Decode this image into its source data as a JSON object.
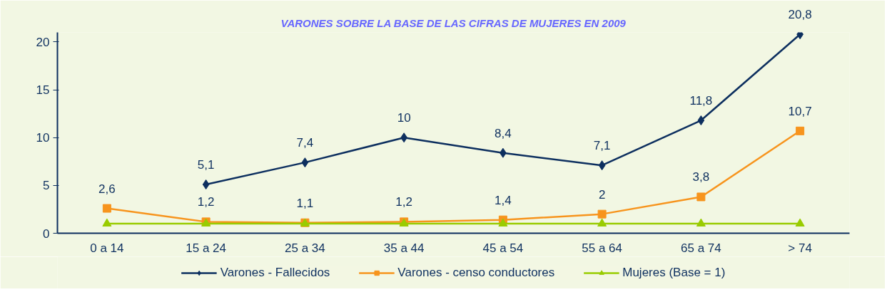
{
  "chart_data": {
    "type": "line",
    "title": "VARONES SOBRE LA BASE DE LAS CIFRAS DE MUJERES EN 2009",
    "categories": [
      "0 a 14",
      "15 a 24",
      "25 a 34",
      "35 a 44",
      "45 a 54",
      "55 a 64",
      "65 a 74",
      "> 74"
    ],
    "series": [
      {
        "name": "Varones - Fallecidos",
        "color": "#0d2f5f",
        "marker": "diamond",
        "values": [
          null,
          5.1,
          7.4,
          10,
          8.4,
          7.1,
          11.8,
          20.8
        ],
        "value_labels": [
          null,
          "5,1",
          "7,4",
          "10",
          "8,4",
          "7,1",
          "11,8",
          "20,8"
        ]
      },
      {
        "name": "Varones - censo conductores",
        "color": "#f7941d",
        "marker": "square",
        "values": [
          2.6,
          1.2,
          1.1,
          1.2,
          1.4,
          2,
          3.8,
          10.7
        ],
        "value_labels": [
          "2,6",
          "1,2",
          "1,1",
          "1,2",
          "1,4",
          "2",
          "3,8",
          "10,7"
        ]
      },
      {
        "name": "Mujeres (Base = 1)",
        "color": "#99cc00",
        "marker": "triangle",
        "values": [
          1,
          1,
          1,
          1,
          1,
          1,
          1,
          1
        ]
      }
    ],
    "ylim": [
      0,
      21
    ],
    "yticks": [
      0,
      5,
      10,
      15,
      20
    ],
    "grid": false,
    "legend": "bottom"
  }
}
